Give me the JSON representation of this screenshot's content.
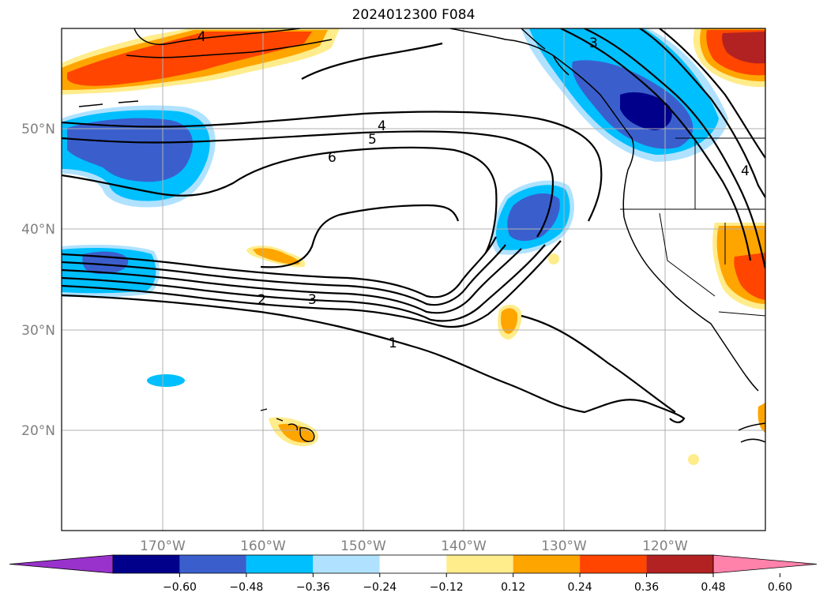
{
  "title": "2024012300 F084",
  "lat_labels": [
    "50°N",
    "40°N",
    "30°N",
    "20°N"
  ],
  "lon_labels": [
    "170°W",
    "160°W",
    "150°W",
    "140°W",
    "130°W",
    "120°W"
  ],
  "contour_labels": [
    "4",
    "5",
    "6",
    "2",
    "3",
    "1",
    "3",
    "4",
    "4"
  ],
  "colorbar": {
    "colors": [
      "#9932cc",
      "#00008b",
      "#3a5fcd",
      "#00bfff",
      "#b0e2ff",
      "#ffffff",
      "#ffec8b",
      "#ffa500",
      "#ff4500",
      "#b22222",
      "#ff82ab"
    ],
    "tick_labels": [
      "−0.60",
      "−0.48",
      "−0.36",
      "−0.24",
      "−0.12",
      "0.12",
      "0.24",
      "0.36",
      "0.48",
      "0.60"
    ]
  },
  "colors": {
    "frame": "#000000",
    "grid": "#b0b0b0",
    "coast": "#000000",
    "contour": "#000000"
  }
}
